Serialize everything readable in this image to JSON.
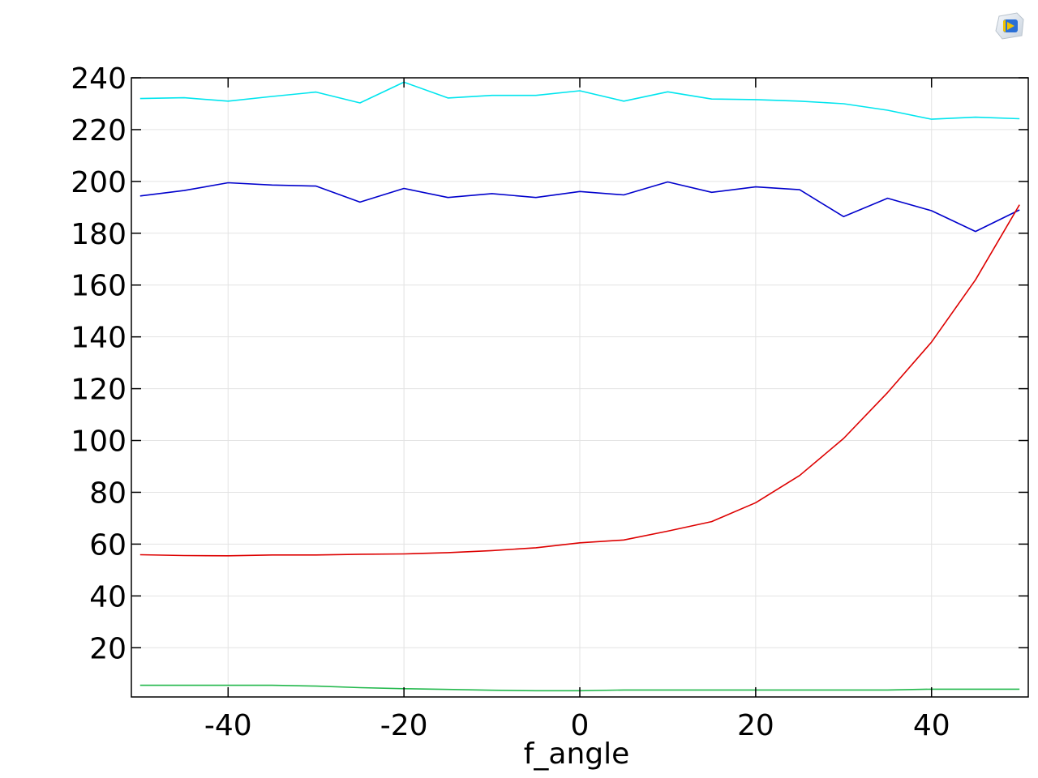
{
  "app": {
    "icon": "comsol-app-icon"
  },
  "chart_data": {
    "type": "line",
    "xlabel": "f_angle",
    "ylabel": "",
    "title": "",
    "xlim": [
      -51,
      51
    ],
    "ylim": [
      1,
      240
    ],
    "xticks": [
      -40,
      -20,
      0,
      20,
      40
    ],
    "yticks": [
      20,
      40,
      60,
      80,
      100,
      120,
      140,
      160,
      180,
      200,
      220,
      240
    ],
    "grid": true,
    "x": [
      -50,
      -45,
      -40,
      -35,
      -30,
      -25,
      -20,
      -15,
      -10,
      -5,
      0,
      5,
      10,
      15,
      20,
      25,
      30,
      35,
      40,
      45,
      50
    ],
    "series": [
      {
        "color": "#00e5ee",
        "values": [
          232,
          232.3,
          231,
          232.8,
          234.5,
          230.3,
          238.3,
          232.2,
          233.2,
          233.2,
          235,
          231,
          234.6,
          231.8,
          231.6,
          231,
          230,
          227.5,
          224,
          224.8,
          224.2
        ]
      },
      {
        "color": "#0000cc",
        "values": [
          194.4,
          196.5,
          199.5,
          198.6,
          198.2,
          192,
          197.3,
          193.8,
          195.3,
          193.8,
          196.1,
          194.8,
          199.8,
          195.8,
          197.9,
          196.8,
          186.4,
          193.5,
          188.7,
          180.7,
          189
        ]
      },
      {
        "color": "#dd0000",
        "values": [
          55.9,
          55.6,
          55.5,
          55.8,
          55.8,
          56.1,
          56.2,
          56.7,
          57.5,
          58.6,
          60.5,
          61.6,
          65,
          68.7,
          76,
          86.5,
          100.8,
          118.5,
          138,
          162,
          191
        ]
      },
      {
        "color": "#22b84c",
        "values": [
          5.5,
          5.5,
          5.5,
          5.5,
          5.2,
          4.6,
          4.2,
          3.9,
          3.6,
          3.4,
          3.4,
          3.7,
          3.7,
          3.7,
          3.7,
          3.7,
          3.7,
          3.7,
          4,
          4,
          4
        ]
      }
    ]
  }
}
